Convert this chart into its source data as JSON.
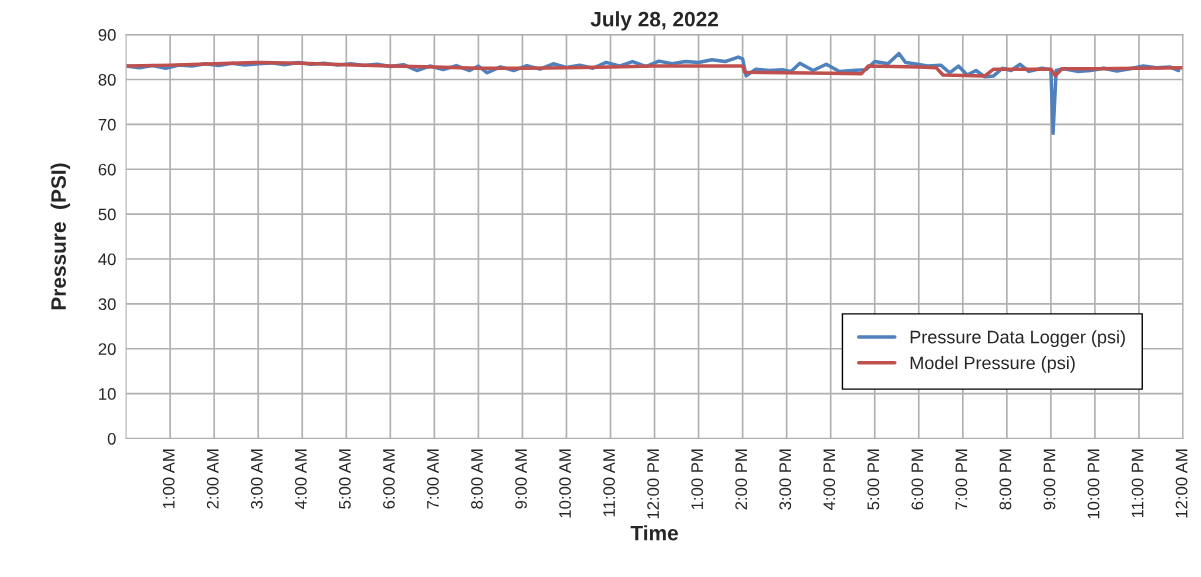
{
  "chart_data": {
    "type": "line",
    "title": "July 28, 2022",
    "xlabel": "Time",
    "ylabel": "Pressure  (PSI)",
    "xlim": [
      0,
      24
    ],
    "ylim": [
      0,
      90
    ],
    "xticks": [
      {
        "value": 1,
        "label": "1:00 AM"
      },
      {
        "value": 2,
        "label": "2:00 AM"
      },
      {
        "value": 3,
        "label": "3:00 AM"
      },
      {
        "value": 4,
        "label": "4:00 AM"
      },
      {
        "value": 5,
        "label": "5:00 AM"
      },
      {
        "value": 6,
        "label": "6:00 AM"
      },
      {
        "value": 7,
        "label": "7:00 AM"
      },
      {
        "value": 8,
        "label": "8:00 AM"
      },
      {
        "value": 9,
        "label": "9:00 AM"
      },
      {
        "value": 10,
        "label": "10:00 AM"
      },
      {
        "value": 11,
        "label": "11:00 AM"
      },
      {
        "value": 12,
        "label": "12:00 PM"
      },
      {
        "value": 13,
        "label": "1:00 PM"
      },
      {
        "value": 14,
        "label": "2:00 PM"
      },
      {
        "value": 15,
        "label": "3:00 PM"
      },
      {
        "value": 16,
        "label": "4:00 PM"
      },
      {
        "value": 17,
        "label": "5:00 PM"
      },
      {
        "value": 18,
        "label": "6:00 PM"
      },
      {
        "value": 19,
        "label": "7:00 PM"
      },
      {
        "value": 20,
        "label": "8:00 PM"
      },
      {
        "value": 21,
        "label": "9:00 PM"
      },
      {
        "value": 22,
        "label": "10:00 PM"
      },
      {
        "value": 23,
        "label": "11:00 PM"
      },
      {
        "value": 24,
        "label": "12:00 AM"
      }
    ],
    "yticks": [
      0,
      10,
      20,
      30,
      40,
      50,
      60,
      70,
      80,
      90
    ],
    "grid": true,
    "legend": "bottom right",
    "marker": "none",
    "line_style": "solid",
    "series": [
      {
        "name": "Pressure Data Logger (psi)",
        "color": "#4f81bd",
        "x": [
          0,
          0.3,
          0.6,
          0.9,
          1.2,
          1.5,
          1.8,
          2.1,
          2.4,
          2.7,
          3.0,
          3.3,
          3.6,
          3.9,
          4.2,
          4.5,
          4.8,
          5.1,
          5.4,
          5.7,
          6.0,
          6.3,
          6.6,
          6.9,
          7.2,
          7.5,
          7.8,
          8.0,
          8.2,
          8.5,
          8.8,
          9.1,
          9.4,
          9.7,
          10.0,
          10.3,
          10.6,
          10.9,
          11.2,
          11.5,
          11.8,
          12.1,
          12.4,
          12.7,
          13.0,
          13.3,
          13.6,
          13.9,
          14.0,
          14.08,
          14.3,
          14.6,
          14.9,
          15.1,
          15.3,
          15.6,
          15.9,
          16.2,
          16.5,
          16.8,
          17.0,
          17.3,
          17.55,
          17.7,
          17.9,
          18.2,
          18.5,
          18.7,
          18.9,
          19.1,
          19.3,
          19.5,
          19.7,
          19.9,
          20.1,
          20.3,
          20.5,
          20.8,
          21.0,
          21.05,
          21.12,
          21.3,
          21.6,
          21.9,
          22.2,
          22.5,
          22.8,
          23.1,
          23.4,
          23.7,
          23.9
        ],
        "values": [
          83.0,
          82.6,
          83.1,
          82.5,
          83.2,
          83.0,
          83.5,
          83.1,
          83.6,
          83.2,
          83.5,
          83.7,
          83.3,
          83.8,
          83.4,
          83.6,
          83.2,
          83.5,
          83.1,
          83.4,
          82.9,
          83.3,
          82.0,
          83.0,
          82.2,
          83.1,
          82.0,
          83.0,
          81.5,
          82.8,
          82.0,
          83.1,
          82.3,
          83.5,
          82.7,
          83.2,
          82.5,
          83.8,
          83.0,
          84.0,
          82.9,
          84.1,
          83.5,
          84.0,
          83.8,
          84.4,
          84.0,
          85.0,
          84.6,
          80.8,
          82.3,
          82.0,
          82.2,
          81.8,
          83.6,
          82.0,
          83.4,
          81.8,
          82.0,
          82.2,
          84.0,
          83.5,
          85.8,
          83.8,
          83.5,
          83.0,
          83.2,
          81.5,
          83.0,
          81.0,
          82.0,
          80.6,
          80.8,
          82.5,
          82.0,
          83.4,
          81.8,
          82.5,
          82.2,
          68.0,
          82.0,
          82.4,
          81.8,
          82.0,
          82.5,
          81.9,
          82.4,
          83.0,
          82.6,
          82.8,
          82.0
        ]
      },
      {
        "name": "Model Pressure (psi)",
        "color": "#c0504d",
        "x": [
          0,
          1,
          2,
          3,
          4,
          5,
          6,
          7,
          8,
          9,
          10,
          11,
          12,
          13,
          14,
          14.05,
          15,
          16,
          16.7,
          16.85,
          18,
          18.4,
          18.55,
          19.5,
          19.7,
          21.0,
          21.1,
          21.25,
          22,
          23,
          24
        ],
        "values": [
          83.0,
          83.2,
          83.5,
          83.8,
          83.6,
          83.3,
          83.0,
          82.8,
          82.5,
          82.5,
          82.6,
          82.8,
          83.0,
          83.0,
          83.0,
          81.6,
          81.5,
          81.4,
          81.3,
          83.0,
          82.8,
          82.6,
          81.0,
          80.8,
          82.3,
          82.3,
          80.8,
          82.4,
          82.4,
          82.5,
          82.6
        ]
      }
    ]
  }
}
